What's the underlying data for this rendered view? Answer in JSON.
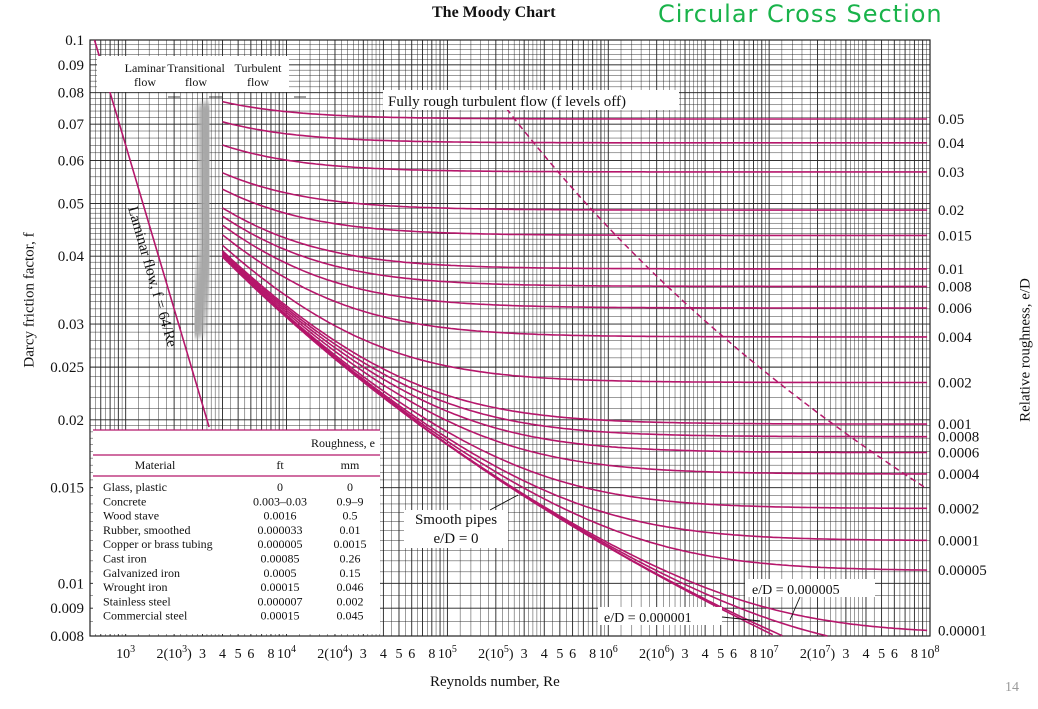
{
  "header": {
    "title": "The Moody Chart",
    "handwritten_note": "Circular Cross Section",
    "page_number": "14"
  },
  "colors": {
    "curve": "#b5176b",
    "grid": "#222222",
    "note": "#19b34a"
  },
  "chart_data": {
    "type": "line",
    "title": "The Moody Chart",
    "xlabel": "Reynolds number, Re",
    "ylabel": "Darcy friction factor, f",
    "right_label": "Relative roughness, e/D",
    "xscale": "log",
    "yscale": "log",
    "xlim": [
      600,
      100000000
    ],
    "ylim": [
      0.008,
      0.1
    ],
    "grid": true,
    "x_tick_labels": [
      "10^3",
      "2(10^3)",
      "3",
      "4",
      "5",
      "6",
      "8",
      "10^4",
      "2(10^4)",
      "3",
      "4",
      "5",
      "6",
      "8",
      "10^5",
      "2(10^5)",
      "3",
      "4",
      "5",
      "6",
      "8",
      "10^6",
      "2(10^6)",
      "3",
      "4",
      "5",
      "6",
      "8",
      "10^7",
      "2(10^7)",
      "3",
      "4",
      "5",
      "6",
      "8",
      "10^8"
    ],
    "y_tick_labels": [
      "0.1",
      "0.09",
      "0.08",
      "0.07",
      "0.06",
      "0.05",
      "0.04",
      "0.03",
      "0.025",
      "0.02",
      "0.015",
      "0.01",
      "0.009",
      "0.008"
    ],
    "y_ticks": [
      0.1,
      0.09,
      0.08,
      0.07,
      0.06,
      0.05,
      0.04,
      0.03,
      0.025,
      0.02,
      0.015,
      0.01,
      0.009,
      0.008
    ],
    "roughness_labels": [
      "0.05",
      "0.04",
      "0.03",
      "0.02",
      "0.015",
      "0.01",
      "0.008",
      "0.006",
      "0.004",
      "0.002",
      "0.001",
      "0.0008",
      "0.0006",
      "0.0004",
      "0.0002",
      "0.0001",
      "0.00005",
      "0.00001"
    ],
    "roughness_values": [
      0.05,
      0.04,
      0.03,
      0.02,
      0.015,
      0.01,
      0.008,
      0.006,
      0.004,
      0.002,
      0.001,
      0.0008,
      0.0006,
      0.0004,
      0.0002,
      0.0001,
      5e-05,
      1e-05
    ],
    "extra_roughness_curves": [
      5e-06,
      1e-06,
      0
    ],
    "regions": [
      "Laminar flow",
      "Transitional flow",
      "Turbulent flow"
    ],
    "annotations": {
      "fully_rough": "Fully rough turbulent flow (f levels off)",
      "laminar": "Laminar flow, f = 64/Re",
      "smooth1": "Smooth pipes",
      "smooth2": "e/D = 0",
      "ed5": "e/D = 0.000005",
      "ed1": "e/D = 0.000001"
    },
    "table": {
      "group_header": "Roughness, e",
      "columns": [
        "Material",
        "ft",
        "mm"
      ],
      "rows": [
        [
          "Glass, plastic",
          "0",
          "0"
        ],
        [
          "Concrete",
          "0.003–0.03",
          "0.9–9"
        ],
        [
          "Wood stave",
          "0.0016",
          "0.5"
        ],
        [
          "Rubber, smoothed",
          "0.000033",
          "0.01"
        ],
        [
          "Copper or brass tubing",
          "0.000005",
          "0.0015"
        ],
        [
          "Cast iron",
          "0.00085",
          "0.26"
        ],
        [
          "Galvanized iron",
          "0.0005",
          "0.15"
        ],
        [
          "Wrought iron",
          "0.00015",
          "0.046"
        ],
        [
          "Stainless steel",
          "0.000007",
          "0.002"
        ],
        [
          "Commercial steel",
          "0.00015",
          "0.045"
        ]
      ]
    }
  }
}
